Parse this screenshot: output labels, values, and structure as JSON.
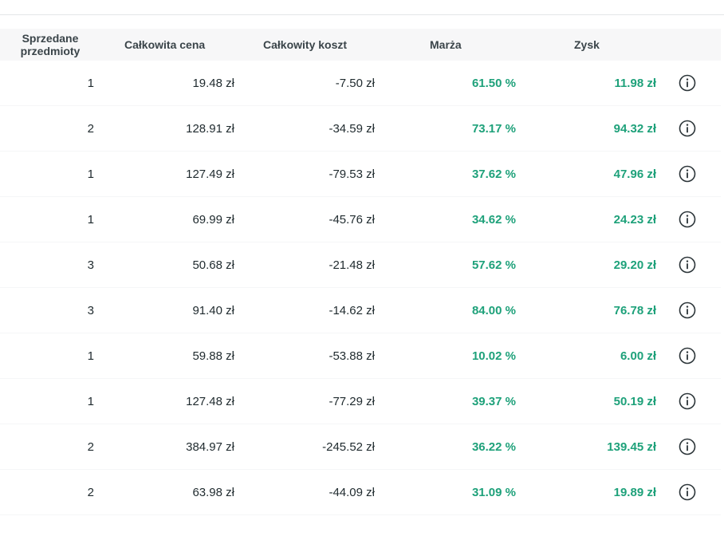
{
  "table": {
    "headers": {
      "qty": "Sprzedane przedmioty",
      "price": "Całkowita cena",
      "cost": "Całkowity koszt",
      "margin": "Marża",
      "profit": "Zysk"
    },
    "rows": [
      {
        "qty": "1",
        "price": "19.48 zł",
        "cost": "-7.50 zł",
        "margin": "61.50 %",
        "profit": "11.98 zł",
        "icon": "info-icon"
      },
      {
        "qty": "2",
        "price": "128.91 zł",
        "cost": "-34.59 zł",
        "margin": "73.17 %",
        "profit": "94.32 zł",
        "icon": "info-icon"
      },
      {
        "qty": "1",
        "price": "127.49 zł",
        "cost": "-79.53 zł",
        "margin": "37.62 %",
        "profit": "47.96 zł",
        "icon": "info-icon"
      },
      {
        "qty": "1",
        "price": "69.99 zł",
        "cost": "-45.76 zł",
        "margin": "34.62 %",
        "profit": "24.23 zł",
        "icon": "info-icon"
      },
      {
        "qty": "3",
        "price": "50.68 zł",
        "cost": "-21.48 zł",
        "margin": "57.62 %",
        "profit": "29.20 zł",
        "icon": "info-icon"
      },
      {
        "qty": "3",
        "price": "91.40 zł",
        "cost": "-14.62 zł",
        "margin": "84.00 %",
        "profit": "76.78 zł",
        "icon": "info-icon"
      },
      {
        "qty": "1",
        "price": "59.88 zł",
        "cost": "-53.88 zł",
        "margin": "10.02 %",
        "profit": "6.00 zł",
        "icon": "info-icon"
      },
      {
        "qty": "1",
        "price": "127.48 zł",
        "cost": "-77.29 zł",
        "margin": "39.37 %",
        "profit": "50.19 zł",
        "icon": "info-icon"
      },
      {
        "qty": "2",
        "price": "384.97 zł",
        "cost": "-245.52 zł",
        "margin": "36.22 %",
        "profit": "139.45 zł",
        "icon": "info-icon"
      },
      {
        "qty": "2",
        "price": "63.98 zł",
        "cost": "-44.09 zł",
        "margin": "31.09 %",
        "profit": "19.89 zł",
        "icon": "info-icon"
      }
    ]
  },
  "colors": {
    "positive": "#1ea17a",
    "header_bg": "#f7f7f8",
    "text": "#1f2a2e"
  }
}
